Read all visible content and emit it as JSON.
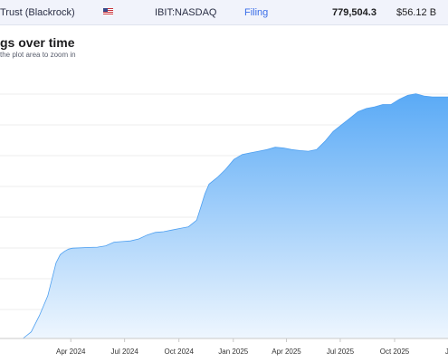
{
  "topbar": {
    "fund_name": "Trust (Blackrock)",
    "flag_icon": "us-flag-icon",
    "ticker": "IBIT:NASDAQ",
    "filing_label": "Filing",
    "holdings": "779,504.3",
    "value": "$56.12 B"
  },
  "chart": {
    "title": "gs over time",
    "subtitle": "the plot area to zoom in"
  },
  "chart_data": {
    "type": "area",
    "title": "gs over time",
    "x_tick_labels": [
      "Apr 2024",
      "Jul 2024",
      "Oct 2024",
      "Jan 2025",
      "Apr 2025",
      "Jul 2025",
      "Oct 2025",
      "Ja"
    ],
    "xlabel": "",
    "ylabel": "",
    "grid": true,
    "fill_color_top": "#5aaaf6",
    "fill_color_bottom": "#eef6fe",
    "line_color": "#4d9ff0",
    "series": [
      {
        "x": [
          "2024-01-11",
          "2024-01-25",
          "2024-02-08",
          "2024-02-22",
          "2024-03-07",
          "2024-03-14",
          "2024-03-21",
          "2024-03-28",
          "2024-04-04",
          "2024-04-18",
          "2024-05-02",
          "2024-05-16",
          "2024-05-30",
          "2024-06-13",
          "2024-06-27",
          "2024-07-11",
          "2024-07-25",
          "2024-08-08",
          "2024-08-22",
          "2024-09-05",
          "2024-09-19",
          "2024-10-03",
          "2024-10-17",
          "2024-10-31",
          "2024-11-07",
          "2024-11-14",
          "2024-11-21",
          "2024-12-05",
          "2024-12-19",
          "2025-01-02",
          "2025-01-16",
          "2025-01-30",
          "2025-02-13",
          "2025-02-27",
          "2025-03-13",
          "2025-03-27",
          "2025-04-10",
          "2025-04-24",
          "2025-05-08",
          "2025-05-22",
          "2025-06-05",
          "2025-06-19",
          "2025-07-03",
          "2025-07-17",
          "2025-07-31",
          "2025-08-14",
          "2025-08-28",
          "2025-09-11",
          "2025-09-25",
          "2025-10-09",
          "2025-10-23",
          "2025-11-06",
          "2025-11-20",
          "2025-12-04"
        ],
        "y": [
          0.0,
          20,
          70,
          130,
          230,
          255,
          265,
          272,
          275,
          276,
          277,
          278,
          282,
          293,
          295,
          297,
          303,
          315,
          323,
          325,
          330,
          335,
          340,
          360,
          400,
          440,
          470,
          490,
          515,
          545,
          560,
          565,
          570,
          575,
          582,
          580,
          575,
          572,
          570,
          575,
          600,
          630,
          650,
          670,
          690,
          700,
          705,
          712,
          712,
          728,
          740,
          745,
          738,
          735
        ]
      }
    ]
  }
}
